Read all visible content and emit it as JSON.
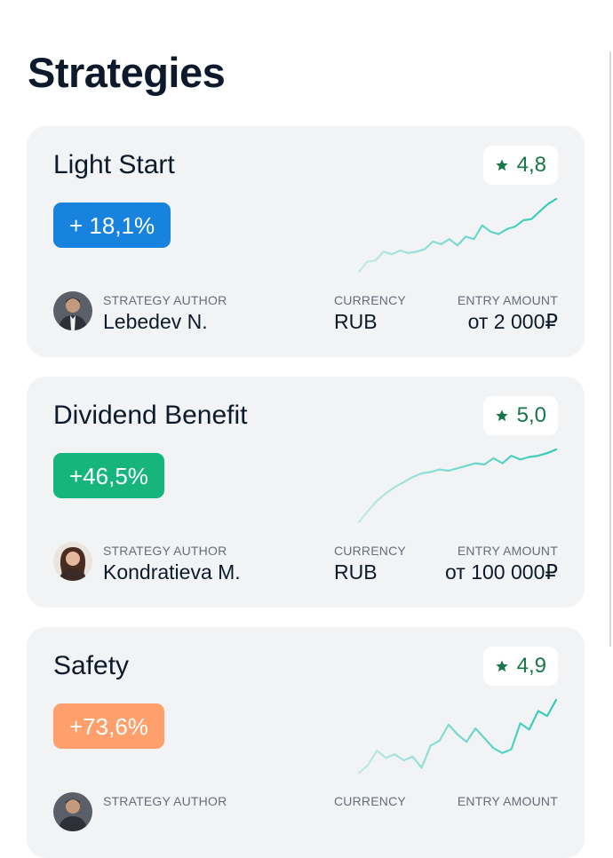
{
  "page": {
    "title": "Strategies"
  },
  "colors": {
    "blue_badge": "#1882df",
    "green_badge": "#16b57d",
    "orange_badge": "#ff9f6b",
    "rating_star": "#17764a",
    "sparkline": "#2ecbb7",
    "card_background": "#f2f3f5"
  },
  "strategies": [
    {
      "name": "Light Start",
      "rating": "4,8",
      "rating_icon": "star-icon",
      "return": "+ 18,1%",
      "return_color": "#1882df",
      "author_label": "STRATEGY AUTHOR",
      "author": "Lebedev N.",
      "currency_label": "CURRENCY",
      "currency": "RUB",
      "entry_label": "ENTRY AMOUNT",
      "entry_amount": "от 2 000₽",
      "sparkline": [
        0,
        0.8,
        0.9,
        1.6,
        1.4,
        1.7,
        1.5,
        1.6,
        1.8,
        2.4,
        2.2,
        2.6,
        2.1,
        2.8,
        2.6,
        3.7,
        3.2,
        3.0,
        3.4,
        3.6,
        4.1,
        4.2,
        4.8,
        5.4,
        5.8
      ]
    },
    {
      "name": "Dividend Benefit",
      "rating": "5,0",
      "rating_icon": "star-icon",
      "return": "+46,5%",
      "return_color": "#16b57d",
      "author_label": "STRATEGY AUTHOR",
      "author": "Kondratieva M.",
      "currency_label": "CURRENCY",
      "currency": "RUB",
      "entry_label": "ENTRY AMOUNT",
      "entry_amount": "от 100 000₽",
      "sparkline": [
        0,
        0.9,
        1.7,
        2.3,
        2.8,
        3.2,
        3.6,
        3.9,
        4.0,
        4.2,
        4.1,
        4.3,
        4.5,
        4.7,
        4.6,
        5.1,
        4.7,
        5.3,
        5.0,
        5.2,
        5.3,
        5.5,
        5.8
      ]
    },
    {
      "name": "Safety",
      "rating": "4,9",
      "rating_icon": "star-icon",
      "return": "+73,6%",
      "return_color": "#ff9f6b",
      "author_label": "STRATEGY AUTHOR",
      "author": "",
      "currency_label": "CURRENCY",
      "currency": "",
      "entry_label": "ENTRY AMOUNT",
      "entry_amount": "",
      "sparkline": [
        0,
        0.6,
        1.8,
        1.2,
        1.5,
        1.0,
        1.3,
        0.4,
        2.2,
        2.6,
        3.9,
        3.1,
        2.5,
        3.6,
        2.8,
        2.0,
        1.6,
        1.9,
        4.0,
        3.5,
        5.0,
        4.6,
        5.9
      ]
    }
  ]
}
